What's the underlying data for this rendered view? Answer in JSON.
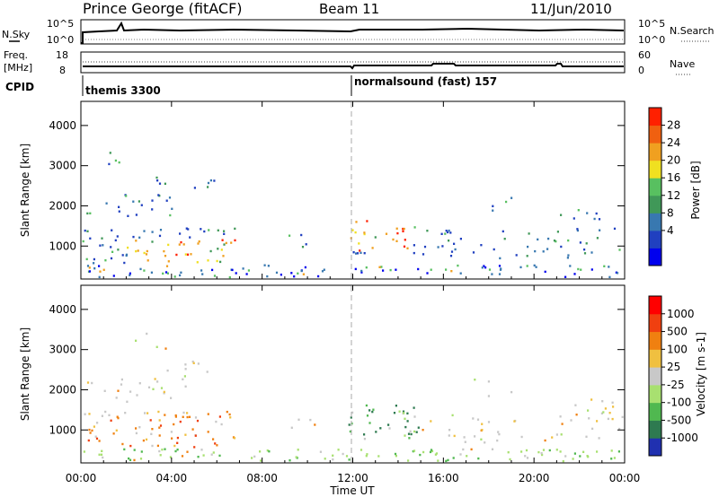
{
  "header": {
    "station": "Prince George (fitACF)",
    "beam": "Beam 11",
    "date": "11/Jun/2010"
  },
  "status_panel": {
    "nsky_label": "N.Sky",
    "nsearch_label": "N.Search",
    "nsky_ticks": [
      "10^5",
      "10^0"
    ],
    "nsearch_ticks": [
      "10^5",
      "10^0"
    ],
    "freq_label": "Freq.",
    "freq_unit": "[MHz]",
    "freq_ticks": [
      "18",
      "8"
    ],
    "nave_label": "Nave",
    "nave_ticks": [
      "60",
      "0"
    ],
    "cpid_label": "CPID",
    "cpid_segments": [
      {
        "start_hour": 0,
        "text": "themis 3300"
      },
      {
        "start_hour": 12,
        "text": "normalsound (fast) 157"
      }
    ]
  },
  "x_axis": {
    "label": "Time UT",
    "ticks": [
      "00:00",
      "04:00",
      "08:00",
      "12:00",
      "16:00",
      "20:00",
      "00:00"
    ]
  },
  "chart_data": [
    {
      "type": "heatmap",
      "name": "Power",
      "ylabel": "Slant Range [km]",
      "yticks": [
        1000,
        2000,
        3000,
        4000
      ],
      "ylim": [
        180,
        4600
      ],
      "xlim_hours": [
        0,
        24
      ],
      "colorbar": {
        "label": "Power [dB]",
        "ticks": [
          "28",
          "24",
          "20",
          "16",
          "12",
          "8",
          "4"
        ],
        "colors": [
          "#0000ee",
          "#2040c0",
          "#3878b0",
          "#409858",
          "#58c060",
          "#f0e020",
          "#f0a020",
          "#f06010",
          "#ff2000"
        ]
      }
    },
    {
      "type": "heatmap",
      "name": "Velocity",
      "ylabel": "Slant Range [km]",
      "yticks": [
        1000,
        2000,
        3000,
        4000
      ],
      "ylim": [
        180,
        4600
      ],
      "xlim_hours": [
        0,
        24
      ],
      "colorbar": {
        "label": "Velocity [m s-1]",
        "ticks": [
          "1000",
          "500",
          "100",
          "25",
          "-25",
          "-100",
          "-500",
          "-1000"
        ],
        "colors": [
          "#2030b0",
          "#2e7a50",
          "#50b850",
          "#a8e070",
          "#c8c8c8",
          "#f0c040",
          "#f08010",
          "#f04010",
          "#ff0000"
        ]
      }
    }
  ]
}
